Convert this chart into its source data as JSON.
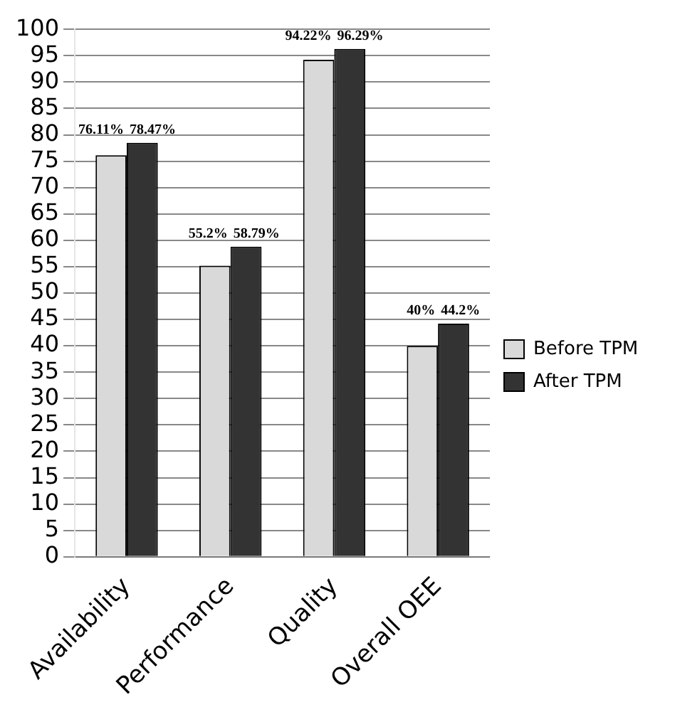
{
  "chart_data": {
    "type": "bar",
    "categories": [
      "Availability",
      "Performance",
      "Quality",
      "Overall OEE"
    ],
    "series": [
      {
        "name": "Before TPM",
        "color": "#d9d9d9",
        "values": [
          76.11,
          55.2,
          94.22,
          40
        ],
        "value_labels": [
          "76.11%",
          "55.2%",
          "94.22%",
          "40%"
        ]
      },
      {
        "name": "After TPM",
        "color": "#333333",
        "values": [
          78.47,
          58.79,
          96.29,
          44.2
        ],
        "value_labels": [
          "78.47%",
          "58.79%",
          "96.29%",
          "44.2%"
        ]
      }
    ],
    "ylim": [
      0,
      100
    ],
    "yticks": [
      0,
      5,
      10,
      15,
      20,
      25,
      30,
      35,
      40,
      45,
      50,
      55,
      60,
      65,
      70,
      75,
      80,
      85,
      90,
      95,
      100
    ],
    "grid": "y",
    "legend": "right"
  }
}
